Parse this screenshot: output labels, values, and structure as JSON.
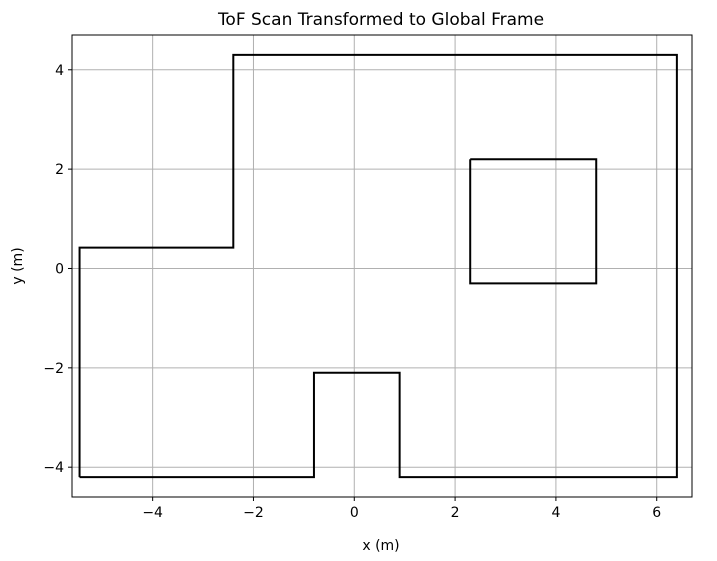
{
  "chart_data": {
    "type": "line",
    "title": "ToF Scan Transformed to Global Frame",
    "xlabel": "x (m)",
    "ylabel": "y (m)",
    "xlim": [
      -5.6,
      6.7
    ],
    "ylim": [
      -4.6,
      4.7
    ],
    "grid": true,
    "x_ticks": [
      -4,
      -2,
      0,
      2,
      4,
      6
    ],
    "y_ticks": [
      -4,
      -2,
      0,
      2,
      4
    ],
    "x_tick_labels": [
      "−4",
      "−2",
      "0",
      "2",
      "4",
      "6"
    ],
    "y_tick_labels": [
      "−4",
      "−2",
      "0",
      "2",
      "4"
    ],
    "line_color": "#000000",
    "grid_color": "#b0b0b0",
    "series": [
      {
        "x": [
          -5.45,
          -5.45,
          -2.4,
          -2.4,
          6.4,
          6.4,
          0.9,
          0.9,
          -0.8,
          -0.8,
          -5.45
        ],
        "y": [
          -4.2,
          0.42,
          0.42,
          4.3,
          4.3,
          -4.2,
          -4.2,
          -2.1,
          -2.1,
          -4.2,
          -4.2
        ]
      },
      {
        "x": [
          2.3,
          4.8,
          4.8,
          2.3,
          2.3
        ],
        "y": [
          2.2,
          2.2,
          -0.3,
          -0.3,
          2.2
        ]
      }
    ]
  }
}
